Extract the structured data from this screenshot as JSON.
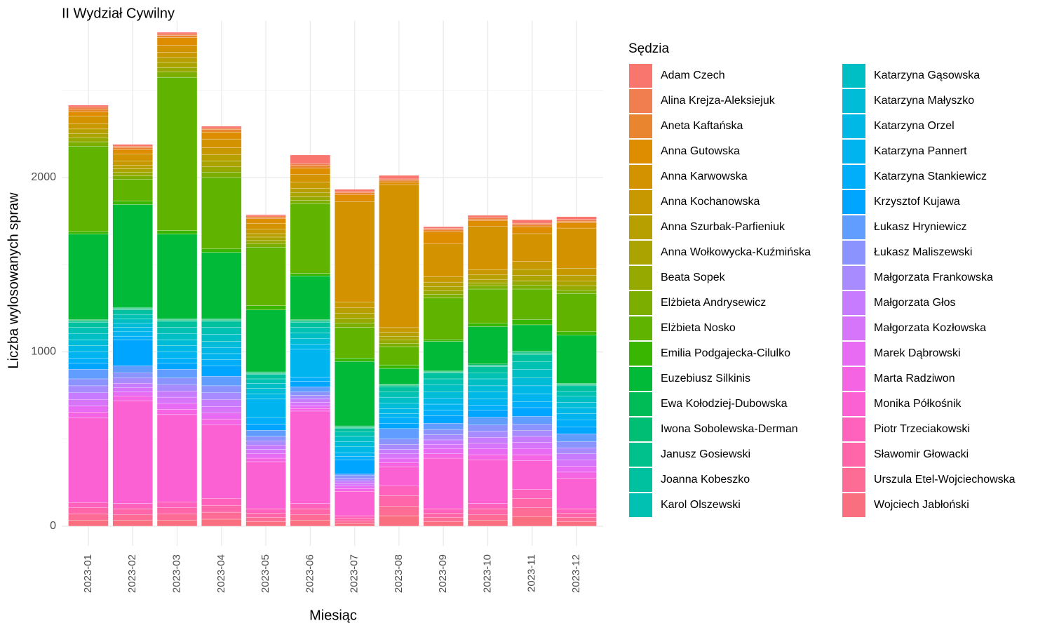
{
  "chart_data": {
    "type": "stacked_bar",
    "title": "II Wydział Cywilny",
    "xlabel": "Miesiąc",
    "ylabel": "Liczba wylosowanych spraw",
    "legend_title": "Sędzia",
    "categories": [
      "2023-01",
      "2023-02",
      "2023-03",
      "2023-04",
      "2023-05",
      "2023-06",
      "2023-07",
      "2023-08",
      "2023-09",
      "2023-10",
      "2023-11",
      "2023-12"
    ],
    "ylim": [
      -113,
      2900
    ],
    "yticks": [
      0,
      1000,
      2000
    ],
    "y_minor_ticks": [
      500,
      1500,
      2500
    ],
    "grid": true,
    "legend": "right",
    "series": [
      {
        "name": "Adam Czech",
        "color": "#F8766D",
        "values": [
          12,
          10,
          10,
          10,
          8,
          50,
          12,
          20,
          10,
          12,
          20,
          15
        ]
      },
      {
        "name": "Alina Krejza-Aleksiejuk",
        "color": "#F07E4F",
        "values": [
          10,
          8,
          8,
          8,
          6,
          10,
          8,
          8,
          8,
          10,
          10,
          10
        ]
      },
      {
        "name": "Aneta Kaftańska",
        "color": "#E8852E",
        "values": [
          15,
          12,
          12,
          15,
          10,
          15,
          10,
          10,
          10,
          10,
          10,
          10
        ]
      },
      {
        "name": "Anna Gutowska",
        "color": "#DE8C00",
        "values": [
          25,
          25,
          45,
          40,
          25,
          35,
          40,
          15,
          70,
          30,
          40,
          30
        ]
      },
      {
        "name": "Anna Karwowska",
        "color": "#D39200",
        "values": [
          45,
          40,
          40,
          50,
          35,
          45,
          575,
          820,
          190,
          250,
          160,
          230
        ]
      },
      {
        "name": "Anna Kochanowska",
        "color": "#C89800",
        "values": [
          30,
          25,
          30,
          40,
          25,
          35,
          35,
          25,
          30,
          30,
          45,
          40
        ]
      },
      {
        "name": "Anna Szurbak-Parfieniuk",
        "color": "#B79F00",
        "values": [
          25,
          20,
          28,
          35,
          20,
          25,
          30,
          25,
          25,
          25,
          35,
          35
        ]
      },
      {
        "name": "Anna Wołkowycka-Kuźmińska",
        "color": "#ABA300",
        "values": [
          25,
          20,
          30,
          35,
          20,
          25,
          30,
          20,
          25,
          20,
          30,
          25
        ]
      },
      {
        "name": "Beata Sopek",
        "color": "#95A900",
        "values": [
          23,
          20,
          25,
          30,
          18,
          20,
          27,
          20,
          20,
          18,
          25,
          25
        ]
      },
      {
        "name": "Elżbieta Andrysewicz",
        "color": "#7CAE00",
        "values": [
          25,
          20,
          30,
          31,
          20,
          19,
          25,
          19,
          20,
          18,
          23,
          20
        ]
      },
      {
        "name": "Elżbieta Nosko",
        "color": "#60B400",
        "values": [
          490,
          125,
          880,
          410,
          335,
          400,
          175,
          105,
          240,
          195,
          175,
          220
        ]
      },
      {
        "name": "Emilia Podgajecka-Cilulko",
        "color": "#39B600",
        "values": [
          15,
          20,
          20,
          20,
          25,
          15,
          20,
          20,
          10,
          20,
          30,
          20
        ]
      },
      {
        "name": "Euzebiusz Silkinis",
        "color": "#00BA38",
        "values": [
          490,
          590,
          485,
          380,
          355,
          250,
          370,
          90,
          170,
          215,
          150,
          275
        ]
      },
      {
        "name": "Ewa Kołodziej-Dubowska",
        "color": "#00BC56",
        "values": [
          5,
          5,
          5,
          5,
          5,
          5,
          5,
          5,
          4,
          5,
          7,
          5
        ]
      },
      {
        "name": "Iwona Sobolewska-Derman",
        "color": "#00BF74",
        "values": [
          5,
          5,
          5,
          5,
          5,
          5,
          5,
          5,
          3,
          5,
          7,
          5
        ]
      },
      {
        "name": "Janusz Gosiewski",
        "color": "#00C08B",
        "values": [
          5,
          5,
          5,
          5,
          5,
          5,
          5,
          5,
          3,
          5,
          6,
          5
        ]
      },
      {
        "name": "Joanna Kobeszko",
        "color": "#00C19F",
        "values": [
          30,
          25,
          35,
          35,
          25,
          30,
          20,
          30,
          35,
          35,
          40,
          30
        ]
      },
      {
        "name": "Karol Olszewski",
        "color": "#00C1B2",
        "values": [
          35,
          25,
          35,
          40,
          25,
          30,
          25,
          30,
          35,
          35,
          45,
          30
        ]
      },
      {
        "name": "Katarzyna Gąsowska",
        "color": "#00BFC4",
        "values": [
          35,
          25,
          35,
          40,
          30,
          35,
          30,
          35,
          40,
          40,
          50,
          35
        ]
      },
      {
        "name": "Katarzyna Małyszko",
        "color": "#00BCD6",
        "values": [
          35,
          25,
          35,
          35,
          30,
          30,
          30,
          30,
          35,
          35,
          45,
          30
        ]
      },
      {
        "name": "Katarzyna Orzel",
        "color": "#00B8E5",
        "values": [
          35,
          25,
          35,
          35,
          30,
          30,
          35,
          30,
          35,
          40,
          45,
          35
        ]
      },
      {
        "name": "Katarzyna Pannert",
        "color": "#00B4F0",
        "values": [
          35,
          25,
          35,
          35,
          110,
          160,
          20,
          25,
          35,
          35,
          45,
          35
        ]
      },
      {
        "name": "Katarzyna Stankiewicz",
        "color": "#00AEFA",
        "values": [
          30,
          20,
          30,
          35,
          35,
          25,
          20,
          30,
          30,
          30,
          35,
          40
        ]
      },
      {
        "name": "Krzysztof Kujawa",
        "color": "#00A5FF",
        "values": [
          35,
          150,
          35,
          60,
          35,
          30,
          80,
          30,
          45,
          40,
          50,
          40
        ]
      },
      {
        "name": "Łukasz Hryniewicz",
        "color": "#619CFF",
        "values": [
          55,
          40,
          50,
          55,
          35,
          30,
          10,
          60,
          35,
          45,
          45,
          45
        ]
      },
      {
        "name": "Łukasz Maliszewski",
        "color": "#8B93FF",
        "values": [
          40,
          30,
          40,
          40,
          25,
          20,
          15,
          30,
          30,
          35,
          35,
          35
        ]
      },
      {
        "name": "Małgorzata Frankowska",
        "color": "#A88BFF",
        "values": [
          40,
          30,
          35,
          40,
          25,
          20,
          15,
          30,
          30,
          35,
          35,
          35
        ]
      },
      {
        "name": "Małgorzata Głos",
        "color": "#C77CFF",
        "values": [
          40,
          25,
          35,
          40,
          25,
          20,
          15,
          25,
          25,
          35,
          35,
          35
        ]
      },
      {
        "name": "Małgorzata Kozłowska",
        "color": "#D775FA",
        "values": [
          35,
          25,
          35,
          35,
          25,
          20,
          15,
          25,
          25,
          30,
          35,
          35
        ]
      },
      {
        "name": "Marek Dąbrowski",
        "color": "#E76BF3",
        "values": [
          35,
          25,
          35,
          35,
          25,
          15,
          15,
          25,
          30,
          35,
          35,
          35
        ]
      },
      {
        "name": "Marta Radziwon",
        "color": "#F564E3",
        "values": [
          35,
          25,
          30,
          35,
          20,
          15,
          15,
          25,
          25,
          30,
          35,
          35
        ]
      },
      {
        "name": "Monika Półkośnik",
        "color": "#FC61D3",
        "values": [
          485,
          590,
          500,
          420,
          270,
          530,
          140,
          110,
          290,
          250,
          165,
          175
        ]
      },
      {
        "name": "Piotr Trzeciakowski",
        "color": "#FF62BC",
        "values": [
          30,
          30,
          35,
          40,
          25,
          30,
          15,
          55,
          25,
          30,
          50,
          25
        ]
      },
      {
        "name": "Sławomir Głowacki",
        "color": "#FF65A9",
        "values": [
          35,
          35,
          35,
          40,
          25,
          35,
          15,
          60,
          25,
          35,
          55,
          25
        ]
      },
      {
        "name": "Urszula Etel-Wojciechowska",
        "color": "#FC6C94",
        "values": [
          35,
          30,
          35,
          40,
          25,
          30,
          15,
          55,
          25,
          30,
          50,
          25
        ]
      },
      {
        "name": "Wojciech Jabłoński",
        "color": "#FA6F80",
        "values": [
          35,
          35,
          35,
          40,
          25,
          35,
          15,
          60,
          25,
          35,
          55,
          25
        ]
      }
    ]
  }
}
